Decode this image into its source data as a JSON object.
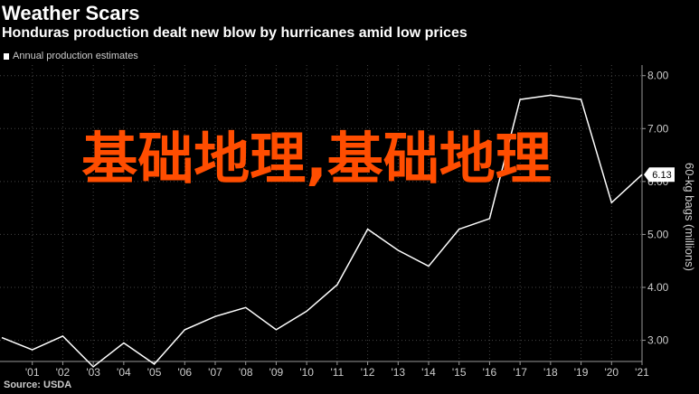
{
  "title": "Weather Scars",
  "subtitle": "Honduras production dealt new blow by hurricanes amid low prices",
  "legend_label": "Annual production estimates",
  "source": "Source: USDA",
  "overlay_text": "基础地理,基础地理",
  "colors": {
    "background": "#000000",
    "line": "#ffffff",
    "grid": "#444444",
    "overlay": "#ff4d00"
  },
  "chart_data": {
    "type": "line",
    "title": "Weather Scars",
    "subtitle": "Honduras production dealt new blow by hurricanes amid low prices",
    "ylabel": "60-kg bags (millions)",
    "xlabel": "",
    "ylim": [
      2.6,
      8.2
    ],
    "ytick_labels": [
      "3.00",
      "4.00",
      "5.00",
      "6.00",
      "7.00",
      "8.00"
    ],
    "yticks": [
      3,
      4,
      5,
      6,
      7,
      8
    ],
    "xtick_labels": [
      "'01",
      "'02",
      "'03",
      "'04",
      "'05",
      "'06",
      "'07",
      "'08",
      "'09",
      "'10",
      "'11",
      "'12",
      "'13",
      "'14",
      "'15",
      "'16",
      "'17",
      "'18",
      "'19",
      "'20",
      "'21"
    ],
    "last_value_label": "6.13",
    "grid": true,
    "series": [
      {
        "name": "Annual production estimates",
        "x": [
          2000,
          2001,
          2002,
          2003,
          2004,
          2005,
          2006,
          2007,
          2008,
          2009,
          2010,
          2011,
          2012,
          2013,
          2014,
          2015,
          2016,
          2017,
          2018,
          2019,
          2020,
          2021
        ],
        "values": [
          3.05,
          2.82,
          3.08,
          2.5,
          2.95,
          2.55,
          3.2,
          3.45,
          3.62,
          3.2,
          3.55,
          4.05,
          5.1,
          4.7,
          4.4,
          5.1,
          5.3,
          7.55,
          7.63,
          7.55,
          5.6,
          6.13
        ]
      }
    ]
  }
}
